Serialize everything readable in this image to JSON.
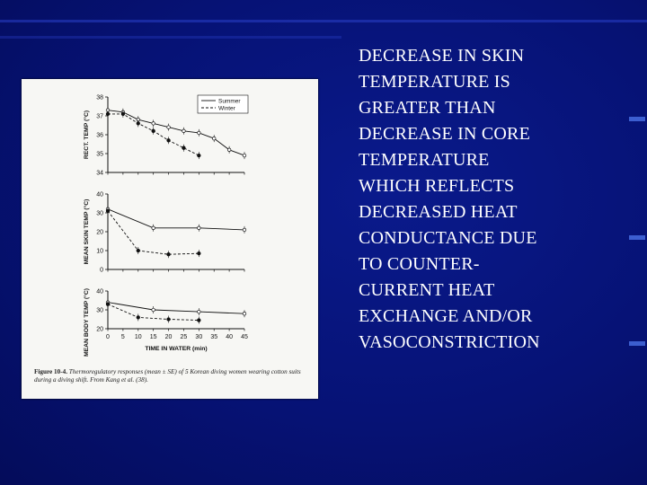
{
  "slide": {
    "text_lines": [
      "DECREASE IN SKIN",
      "TEMPERATURE IS",
      "GREATER THAN",
      "DECREASE IN CORE",
      "TEMPERATURE",
      "WHICH REFLECTS",
      "DECREASED HEAT",
      "CONDUCTANCE DUE",
      "TO COUNTER-",
      "CURRENT HEAT",
      "EXCHANGE AND/OR",
      "VASOCONSTRICTION"
    ]
  },
  "figure": {
    "caption_label": "Figure 10-4.",
    "caption_text": "Thermoregulatory responses (mean ± SE) of 5 Korean diving women wearing cotton suits during a diving shift. From Kang et al. (38)."
  },
  "chart_data": [
    {
      "type": "line",
      "ylabel": "RECT. TEMP (°C)",
      "ylim": [
        34,
        38
      ],
      "yticks": [
        34,
        35,
        36,
        37,
        38
      ],
      "series": [
        {
          "name": "Summer",
          "style": "solid",
          "x": [
            0,
            5,
            10,
            15,
            20,
            25,
            30,
            35,
            40,
            45
          ],
          "values": [
            37.3,
            37.2,
            36.8,
            36.6,
            36.4,
            36.2,
            36.1,
            35.8,
            35.2,
            34.9
          ]
        },
        {
          "name": "Winter",
          "style": "dashed",
          "x": [
            0,
            5,
            10,
            15,
            20,
            25,
            30
          ],
          "values": [
            37.1,
            37.1,
            36.6,
            36.2,
            35.7,
            35.3,
            34.9
          ]
        }
      ],
      "legend": "top-right"
    },
    {
      "type": "line",
      "ylabel": "MEAN SKIN TEMP (°C)",
      "ylim": [
        0,
        40
      ],
      "yticks": [
        0,
        10,
        20,
        30,
        40
      ],
      "series": [
        {
          "name": "Summer",
          "style": "solid",
          "x": [
            0,
            15,
            30,
            45
          ],
          "values": [
            32,
            22,
            22,
            21
          ]
        },
        {
          "name": "Winter",
          "style": "dashed",
          "x": [
            0,
            10,
            20,
            30
          ],
          "values": [
            31,
            10,
            8,
            8.5
          ]
        }
      ]
    },
    {
      "type": "line",
      "xlabel": "TIME IN WATER (min)",
      "ylabel": "MEAN BODY TEMP (°C)",
      "ylim": [
        20,
        40
      ],
      "yticks": [
        20,
        30,
        40
      ],
      "xticks": [
        0,
        5,
        10,
        15,
        20,
        25,
        30,
        35,
        40,
        45
      ],
      "series": [
        {
          "name": "Summer",
          "style": "solid",
          "x": [
            0,
            15,
            30,
            45
          ],
          "values": [
            34,
            30,
            29,
            28
          ]
        },
        {
          "name": "Winter",
          "style": "dashed",
          "x": [
            0,
            10,
            20,
            30
          ],
          "values": [
            33,
            26,
            25,
            24.5
          ]
        }
      ]
    }
  ]
}
